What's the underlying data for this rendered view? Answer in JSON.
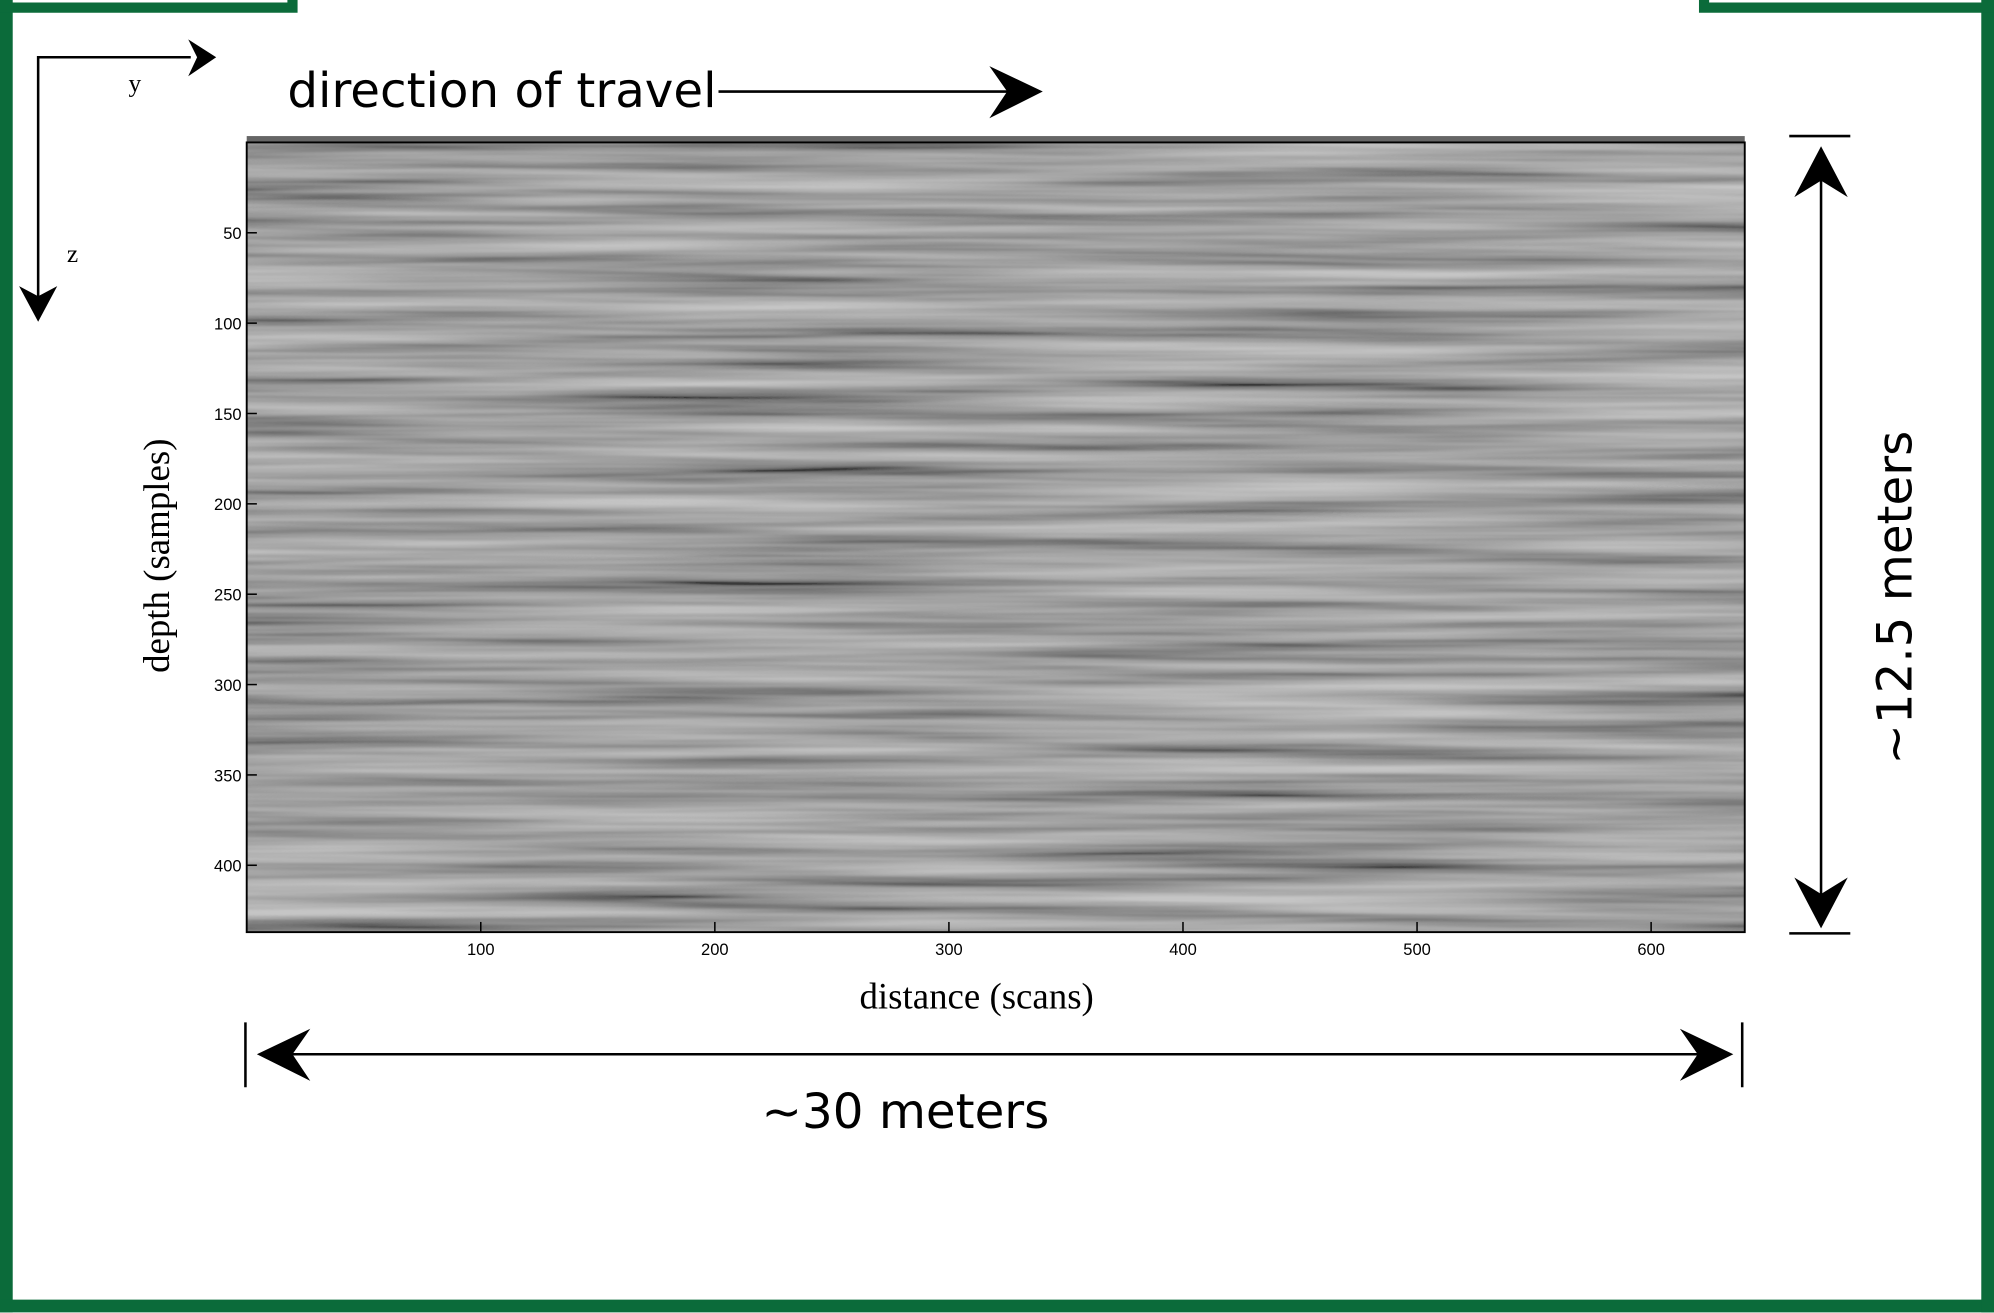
{
  "chart_data": {
    "type": "image",
    "xlabel": "distance (scans)",
    "ylabel": "depth (samples)",
    "xlim": [
      0,
      640
    ],
    "xticks": [
      100,
      200,
      300,
      400,
      500,
      600
    ],
    "ylim": [
      0,
      437
    ],
    "yticks": [
      50,
      100,
      150,
      200,
      250,
      300,
      350,
      400
    ],
    "y_inverted": true,
    "annotations": {
      "travel": "direction of travel",
      "width": "~30 meters",
      "height": "~12.5 meters",
      "axis_y": "y",
      "axis_z": "z"
    }
  }
}
